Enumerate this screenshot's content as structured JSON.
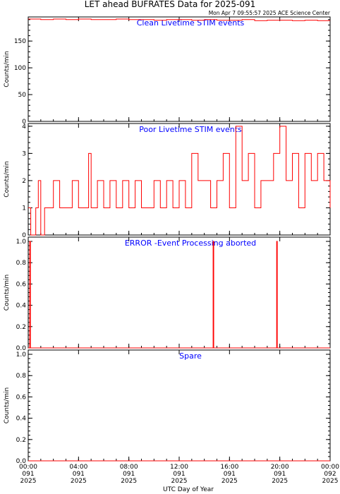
{
  "title": "LET ahead BUFRATES Data for 2025-091",
  "timestamp": "Mon Apr  7 09:55:57 2025 ACE Science Center",
  "x_axis_label": "UTC Day of Year",
  "colors": {
    "series": "#ff0000",
    "panel_title": "#0000ff",
    "frame": "#000000"
  },
  "chart_data": [
    {
      "type": "line",
      "title": "Clean Livetime STIM events",
      "ylabel": "Counts/min",
      "ylim": [
        0,
        195
      ],
      "yticks": [
        0,
        50,
        100,
        150
      ],
      "xlim": [
        0,
        24
      ],
      "series": [
        {
          "x": [
            0,
            1,
            2,
            3,
            4,
            5,
            6,
            7,
            8,
            9,
            10,
            11,
            12,
            13,
            14,
            15,
            16,
            17,
            18,
            19,
            20,
            21,
            22,
            23,
            24
          ],
          "values": [
            191,
            190,
            191,
            190,
            191,
            190,
            190,
            191,
            190,
            190,
            189,
            190,
            190,
            189,
            190,
            189,
            189,
            190,
            188,
            189,
            189,
            188,
            189,
            188,
            188
          ]
        }
      ]
    },
    {
      "type": "line",
      "title": "Poor Livetime STIM events",
      "ylabel": "Counts/min",
      "ylim": [
        0,
        4.1
      ],
      "yticks": [
        0,
        1,
        2,
        3,
        4
      ],
      "xlim": [
        0,
        24
      ],
      "series": [
        {
          "x": [
            0,
            0.2,
            0.6,
            0.8,
            1.0,
            1.3,
            1.6,
            2.0,
            2.5,
            3.0,
            3.5,
            4.0,
            4.8,
            5.0,
            5.5,
            6.0,
            6.5,
            7.0,
            7.5,
            8.0,
            8.5,
            9.0,
            9.5,
            10.0,
            10.5,
            11.0,
            11.5,
            12.0,
            12.5,
            13.0,
            13.5,
            14.0,
            14.5,
            15.0,
            15.5,
            16.0,
            16.5,
            17.0,
            17.5,
            18.0,
            18.5,
            19.0,
            19.5,
            20.0,
            20.5,
            21.0,
            21.5,
            22.0,
            22.5,
            23.0,
            23.5,
            24.0
          ],
          "values": [
            1,
            0,
            1,
            2,
            0,
            1,
            1,
            2,
            1,
            1,
            2,
            1,
            3,
            1,
            2,
            1,
            2,
            1,
            2,
            1,
            2,
            1,
            1,
            2,
            1,
            2,
            1,
            2,
            1,
            3,
            2,
            2,
            1,
            2,
            3,
            1,
            4,
            2,
            3,
            1,
            2,
            2,
            3,
            4,
            2,
            3,
            1,
            3,
            2,
            3,
            2,
            1
          ]
        }
      ]
    },
    {
      "type": "line",
      "title": "ERROR -Event Processing aborted",
      "ylabel": "Counts/min",
      "ylim": [
        0,
        1.04
      ],
      "yticks": [
        0.0,
        0.2,
        0.4,
        0.6,
        0.8,
        1.0
      ],
      "xlim": [
        0,
        24
      ],
      "series": [
        {
          "x": [
            0,
            0.05,
            0.12,
            0.18,
            14.65,
            14.7,
            14.75,
            19.7,
            19.75,
            19.8,
            24
          ],
          "values": [
            0,
            0,
            1,
            0,
            0,
            1,
            0,
            0,
            1,
            0,
            0
          ]
        }
      ]
    },
    {
      "type": "line",
      "title": "Spare",
      "ylabel": "Counts/min",
      "ylim": [
        0,
        1.04
      ],
      "yticks": [
        0.0,
        0.2,
        0.4,
        0.6,
        0.8,
        1.0
      ],
      "xlim": [
        0,
        24
      ],
      "series": [
        {
          "x": [
            0,
            24
          ],
          "values": [
            0,
            0
          ]
        }
      ]
    }
  ],
  "x_ticks": [
    {
      "value": 0,
      "time": "00:00",
      "day": "091",
      "year": "2025"
    },
    {
      "value": 4,
      "time": "04:00",
      "day": "091",
      "year": "2025"
    },
    {
      "value": 8,
      "time": "08:00",
      "day": "091",
      "year": "2025"
    },
    {
      "value": 12,
      "time": "12:00",
      "day": "091",
      "year": "2025"
    },
    {
      "value": 16,
      "time": "16:00",
      "day": "091",
      "year": "2025"
    },
    {
      "value": 20,
      "time": "20:00",
      "day": "091",
      "year": "2025"
    },
    {
      "value": 24,
      "time": "00:00",
      "day": "092",
      "year": "2025"
    }
  ]
}
